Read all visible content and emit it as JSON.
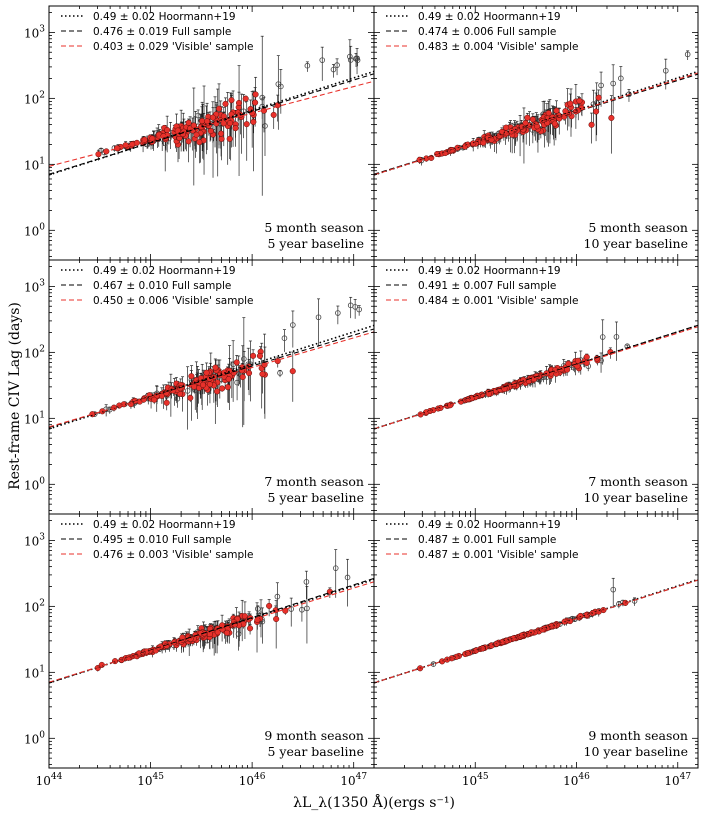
{
  "figure": {
    "ylabel": "Rest-frame CIV Lag (days)",
    "xlabel": "λL_λ(1350 Å)(ergs s⁻¹)",
    "x_ticks": [
      {
        "v": 44,
        "label": "10^44"
      },
      {
        "v": 45,
        "label": "10^45"
      },
      {
        "v": 46,
        "label": "10^46"
      },
      {
        "v": 47,
        "label": "10^47"
      }
    ],
    "y_ticks": [
      {
        "v": 0,
        "label": "10^0"
      },
      {
        "v": 1,
        "label": "10^1"
      },
      {
        "v": 2,
        "label": "10^2"
      },
      {
        "v": 3,
        "label": "10^3"
      }
    ]
  },
  "colors": {
    "hoormann": "#000000",
    "full": "#000000",
    "visible": "#e8312b",
    "point_fill": "#e8312b",
    "open_point": "#444444"
  },
  "chart_data": [
    {
      "type": "scatter",
      "season": "5 month season",
      "baseline": "5 year baseline",
      "xlim": [
        44,
        47.2
      ],
      "ylim": [
        -0.45,
        3.4
      ],
      "x_scale": "log",
      "y_scale": "log",
      "scatter_level": 0.55,
      "series": [
        {
          "name": "0.49 ± 0.02 Hoormann+19",
          "slope": 0.49,
          "err": 0.02,
          "intercept_at_1e44": 0.84
        },
        {
          "name": "0.476 ± 0.019 Full sample",
          "slope": 0.476,
          "err": 0.019,
          "intercept_at_1e44": 0.85
        },
        {
          "name": "0.403 ± 0.029 'Visible' sample",
          "slope": 0.403,
          "err": 0.029,
          "intercept_at_1e44": 0.97
        }
      ]
    },
    {
      "type": "scatter",
      "season": "5 month season",
      "baseline": "10 year baseline",
      "xlim": [
        44,
        47.2
      ],
      "ylim": [
        -0.45,
        3.4
      ],
      "x_scale": "log",
      "y_scale": "log",
      "scatter_level": 0.3,
      "series": [
        {
          "name": "0.49 ± 0.02 Hoormann+19",
          "slope": 0.49,
          "err": 0.02,
          "intercept_at_1e44": 0.84
        },
        {
          "name": "0.474 ± 0.006 Full sample",
          "slope": 0.474,
          "err": 0.006,
          "intercept_at_1e44": 0.85
        },
        {
          "name": "0.483 ± 0.004 'Visible' sample",
          "slope": 0.483,
          "err": 0.004,
          "intercept_at_1e44": 0.84
        }
      ]
    },
    {
      "type": "scatter",
      "season": "7 month season",
      "baseline": "5 year baseline",
      "xlim": [
        44,
        47.2
      ],
      "ylim": [
        -0.45,
        3.4
      ],
      "x_scale": "log",
      "y_scale": "log",
      "scatter_level": 0.4,
      "series": [
        {
          "name": "0.49 ± 0.02 Hoormann+19",
          "slope": 0.49,
          "err": 0.02,
          "intercept_at_1e44": 0.84
        },
        {
          "name": "0.467 ± 0.010 Full sample",
          "slope": 0.467,
          "err": 0.01,
          "intercept_at_1e44": 0.86
        },
        {
          "name": "0.450 ± 0.006 'Visible' sample",
          "slope": 0.45,
          "err": 0.006,
          "intercept_at_1e44": 0.87
        }
      ]
    },
    {
      "type": "scatter",
      "season": "7 month season",
      "baseline": "10 year baseline",
      "xlim": [
        44,
        47.2
      ],
      "ylim": [
        -0.45,
        3.4
      ],
      "x_scale": "log",
      "y_scale": "log",
      "scatter_level": 0.1,
      "series": [
        {
          "name": "0.49 ± 0.02 Hoormann+19",
          "slope": 0.49,
          "err": 0.02,
          "intercept_at_1e44": 0.84
        },
        {
          "name": "0.491 ± 0.007 Full sample",
          "slope": 0.491,
          "err": 0.007,
          "intercept_at_1e44": 0.84
        },
        {
          "name": "0.484 ± 0.001 'Visible' sample",
          "slope": 0.484,
          "err": 0.001,
          "intercept_at_1e44": 0.84
        }
      ]
    },
    {
      "type": "scatter",
      "season": "9 month season",
      "baseline": "5 year baseline",
      "xlim": [
        44,
        47.2
      ],
      "ylim": [
        -0.45,
        3.4
      ],
      "x_scale": "log",
      "y_scale": "log",
      "scatter_level": 0.22,
      "series": [
        {
          "name": "0.49 ± 0.02 Hoormann+19",
          "slope": 0.49,
          "err": 0.02,
          "intercept_at_1e44": 0.84
        },
        {
          "name": "0.495 ± 0.010 Full sample",
          "slope": 0.495,
          "err": 0.01,
          "intercept_at_1e44": 0.84
        },
        {
          "name": "0.476 ± 0.003 'Visible' sample",
          "slope": 0.476,
          "err": 0.003,
          "intercept_at_1e44": 0.85
        }
      ]
    },
    {
      "type": "scatter",
      "season": "9 month season",
      "baseline": "10 year baseline",
      "xlim": [
        44,
        47.2
      ],
      "ylim": [
        -0.45,
        3.4
      ],
      "x_scale": "log",
      "y_scale": "log",
      "scatter_level": 0.03,
      "series": [
        {
          "name": "0.49 ± 0.02 Hoormann+19",
          "slope": 0.49,
          "err": 0.02,
          "intercept_at_1e44": 0.84
        },
        {
          "name": "0.487 ± 0.001 Full sample",
          "slope": 0.487,
          "err": 0.001,
          "intercept_at_1e44": 0.84
        },
        {
          "name": "0.487 ± 0.001 'Visible' sample",
          "slope": 0.487,
          "err": 0.001,
          "intercept_at_1e44": 0.84
        }
      ]
    }
  ]
}
